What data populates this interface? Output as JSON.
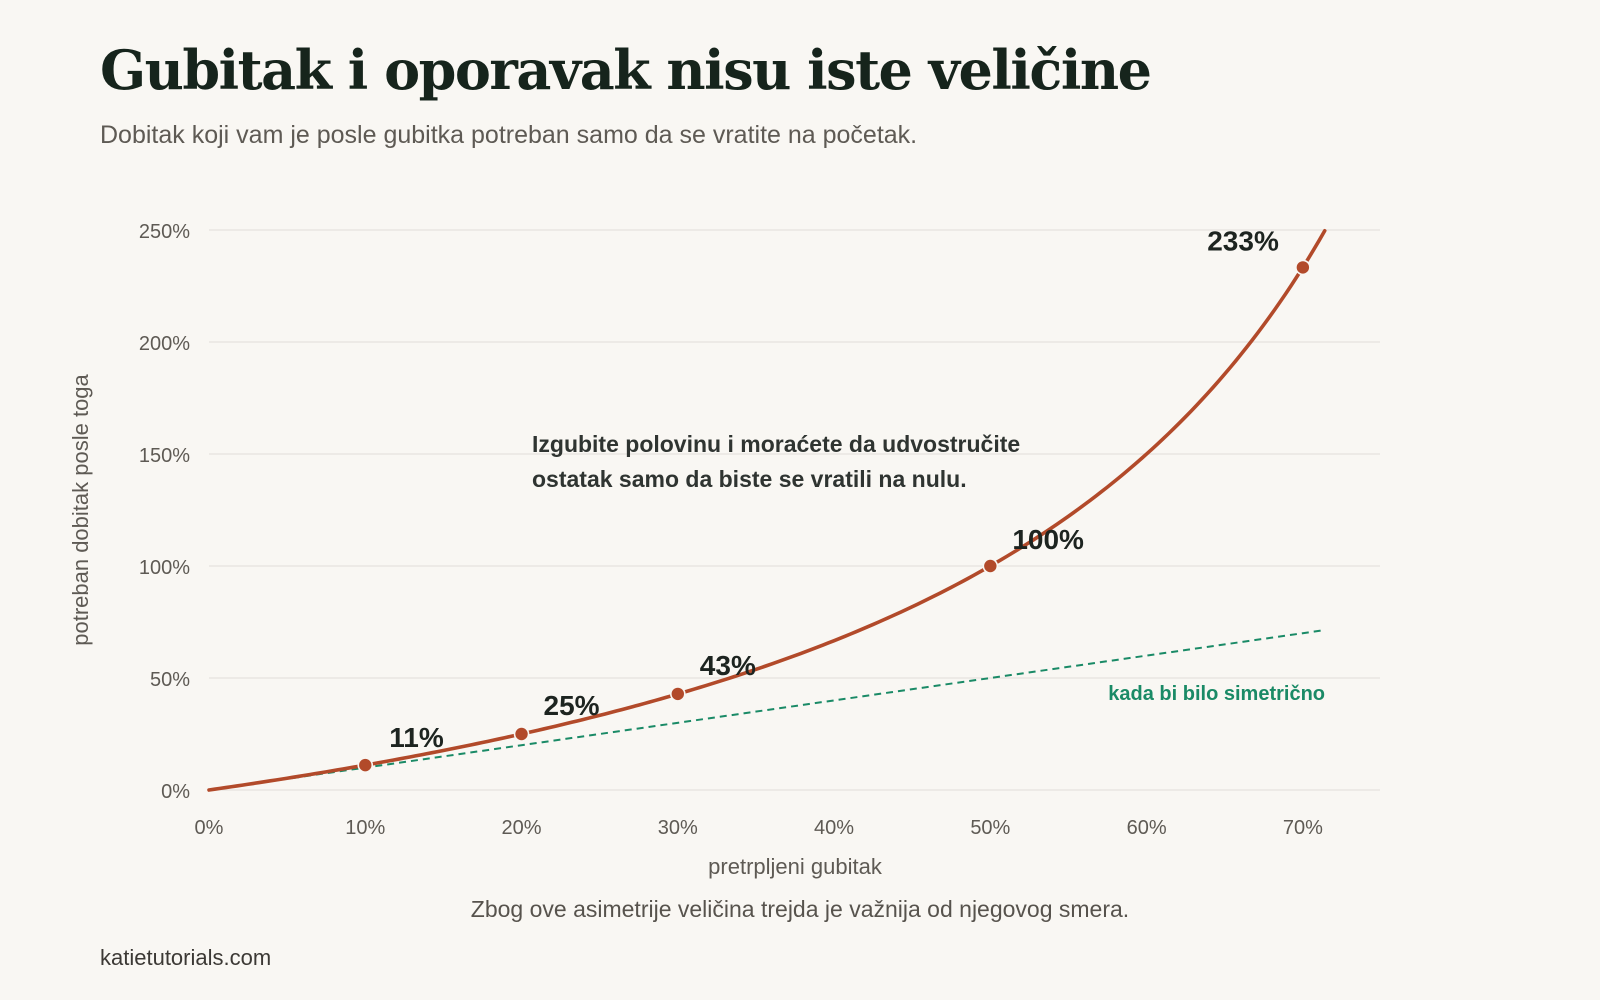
{
  "header": {
    "title": "Gubitak i oporavak nisu iste veličine",
    "subtitle": "Dobitak koji vam je posle gubitka potreban samo da se vratite na početak."
  },
  "footer": {
    "note": "Zbog ove asimetrije veličina trejda je važnija od njegovog smera.",
    "source": "katietutorials.com"
  },
  "colors": {
    "background": "#f9f7f3",
    "curve": "#b24a2a",
    "reference": "#1a8a66",
    "grid": "#e6e3de",
    "text_dark": "#1d2420",
    "text_muted": "#5e5a54"
  },
  "chart_data": {
    "type": "line",
    "xlabel": "pretrpljeni gubitak",
    "ylabel": "potreban dobitak posle toga",
    "xlim": [
      0,
      75
    ],
    "ylim": [
      0,
      250
    ],
    "x_ticks": [
      "0%",
      "10%",
      "20%",
      "30%",
      "40%",
      "50%",
      "60%",
      "70%"
    ],
    "y_ticks": [
      "0%",
      "50%",
      "100%",
      "150%",
      "200%",
      "250%"
    ],
    "grid": "horizontal",
    "series": [
      {
        "name": "",
        "formula": "y = x / (100 - x) * 100",
        "x_range": [
          0,
          71.4
        ],
        "color": "#b24a2a",
        "style": "solid"
      },
      {
        "name": "kada bi bilo simetrično",
        "formula": "y = x",
        "x_range": [
          0,
          71.4
        ],
        "color": "#1a8a66",
        "style": "dashed"
      }
    ],
    "points": [
      {
        "x": 10,
        "y": 11.1,
        "label": "11%"
      },
      {
        "x": 20,
        "y": 25,
        "label": "25%"
      },
      {
        "x": 30,
        "y": 42.9,
        "label": "43%"
      },
      {
        "x": 50,
        "y": 100,
        "label": "100%"
      },
      {
        "x": 70,
        "y": 233.3,
        "label": "233%"
      }
    ],
    "annotation": {
      "line1": "Izgubite polovinu i moraćete da udvostručite",
      "line2": "ostatak samo da biste se vratili na nulu."
    }
  }
}
